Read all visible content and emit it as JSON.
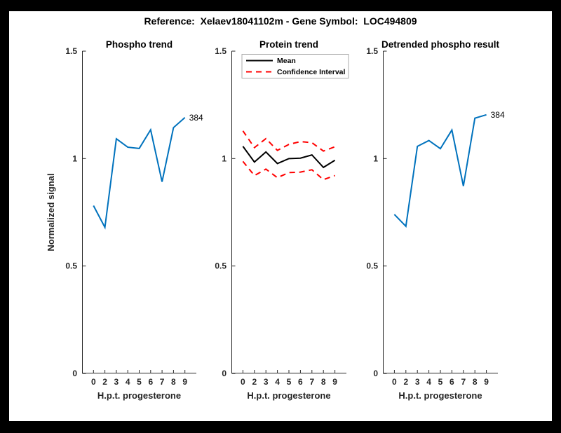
{
  "figure_title": "Reference:  Xelaev18041102m - Gene Symbol:  LOC494809",
  "colors": {
    "blue": "#0072BD",
    "red": "#FF0000",
    "black": "#000000",
    "axis": "#262626",
    "legend_border": "#ababab",
    "figure_background": "#ffffff",
    "frame": "#000000"
  },
  "chart_data": [
    {
      "type": "line",
      "title": "Phospho trend",
      "xlabel": "H.p.t. progesterone",
      "ylabel": "Normalized signal",
      "x_tick_labels": [
        "0",
        "2",
        "3",
        "4",
        "5",
        "6",
        "7",
        "8",
        "9"
      ],
      "y_ticks": [
        0,
        0.5,
        1,
        1.5
      ],
      "y_tick_labels": [
        "0",
        "0.5",
        "1",
        "1.5"
      ],
      "ylim": [
        0,
        1.5
      ],
      "grid": false,
      "series": [
        {
          "name": "phospho",
          "color": "#0072BD",
          "style": "solid",
          "end_label": "384",
          "values": [
            0.781,
            0.68,
            1.092,
            1.053,
            1.047,
            1.134,
            0.892,
            1.144,
            1.191
          ]
        }
      ]
    },
    {
      "type": "line",
      "title": "Protein trend",
      "xlabel": "H.p.t. progesterone",
      "ylabel": "",
      "x_tick_labels": [
        "0",
        "2",
        "3",
        "4",
        "5",
        "6",
        "7",
        "8",
        "9"
      ],
      "y_ticks": [
        0,
        0.5,
        1,
        1.5
      ],
      "y_tick_labels": [
        "0",
        "0.5",
        "1",
        "1.5"
      ],
      "ylim": [
        0,
        1.5
      ],
      "grid": false,
      "legend": [
        {
          "label": "Mean",
          "color": "#000000",
          "style": "solid"
        },
        {
          "label": "Confidence Interval",
          "color": "#FF0000",
          "style": "dashed"
        }
      ],
      "legend_position": "top-left",
      "series": [
        {
          "name": "mean",
          "color": "#000000",
          "style": "solid",
          "values": [
            1.057,
            0.984,
            1.031,
            0.977,
            1.0,
            1.002,
            1.017,
            0.959,
            0.992
          ]
        },
        {
          "name": "ci-upper",
          "color": "#FF0000",
          "style": "dashed",
          "values": [
            1.129,
            1.051,
            1.093,
            1.038,
            1.066,
            1.079,
            1.074,
            1.035,
            1.055
          ]
        },
        {
          "name": "ci-lower",
          "color": "#FF0000",
          "style": "dashed",
          "values": [
            0.987,
            0.921,
            0.951,
            0.911,
            0.935,
            0.937,
            0.948,
            0.902,
            0.921
          ]
        }
      ]
    },
    {
      "type": "line",
      "title": "Detrended phospho result",
      "xlabel": "H.p.t. progesterone",
      "ylabel": "",
      "x_tick_labels": [
        "0",
        "2",
        "3",
        "4",
        "5",
        "6",
        "7",
        "8",
        "9"
      ],
      "y_ticks": [
        0,
        0.5,
        1,
        1.5
      ],
      "y_tick_labels": [
        "0",
        "0.5",
        "1",
        "1.5"
      ],
      "ylim": [
        0,
        1.5
      ],
      "grid": false,
      "series": [
        {
          "name": "detrended-phospho",
          "color": "#0072BD",
          "style": "solid",
          "end_label": "384",
          "values": [
            0.74,
            0.685,
            1.057,
            1.084,
            1.046,
            1.133,
            0.872,
            1.188,
            1.204
          ]
        }
      ]
    }
  ]
}
